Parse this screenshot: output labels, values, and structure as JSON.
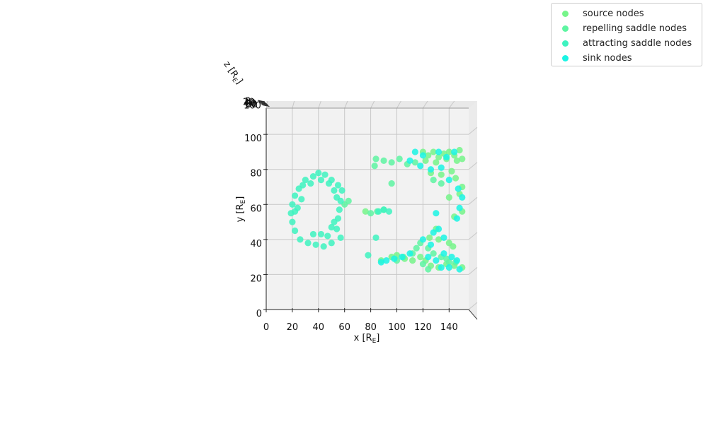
{
  "chart_data": {
    "type": "scatter",
    "projection": "3d, viewed from top (x-y plane)",
    "xlabel": "x [R_E]",
    "ylabel": "y [R_E]",
    "zlabel": "z [R_E]",
    "xlim": [
      0,
      155
    ],
    "ylim": [
      0,
      115
    ],
    "x_ticks": [
      "0",
      "20",
      "40",
      "60",
      "80",
      "100",
      "120",
      "140"
    ],
    "y_ticks": [
      "0",
      "20",
      "40",
      "60",
      "80",
      "100"
    ],
    "z_ticks": [
      "0",
      "20",
      "40",
      "60",
      "80",
      "100"
    ],
    "grid": true,
    "legend_placement": "top-right",
    "series": [
      {
        "name": "source nodes",
        "color": "#76f58a",
        "points": [
          [
            120,
            90
          ],
          [
            124,
            88
          ],
          [
            128,
            90
          ],
          [
            132,
            87
          ],
          [
            136,
            89
          ],
          [
            140,
            90
          ],
          [
            144,
            88
          ],
          [
            148,
            91
          ],
          [
            150,
            86
          ],
          [
            122,
            85
          ],
          [
            130,
            84
          ],
          [
            138,
            86
          ],
          [
            146,
            85
          ],
          [
            126,
            78
          ],
          [
            134,
            77
          ],
          [
            142,
            79
          ],
          [
            145,
            75
          ],
          [
            150,
            70
          ],
          [
            148,
            66
          ],
          [
            140,
            64
          ],
          [
            150,
            56
          ],
          [
            144,
            53
          ],
          [
            130,
            46
          ],
          [
            125,
            41
          ],
          [
            132,
            40
          ],
          [
            140,
            38
          ],
          [
            143,
            36
          ],
          [
            122,
            28
          ],
          [
            126,
            25
          ],
          [
            132,
            24
          ],
          [
            138,
            26
          ],
          [
            144,
            25
          ],
          [
            150,
            24
          ],
          [
            118,
            30
          ],
          [
            112,
            28
          ],
          [
            106,
            29
          ],
          [
            100,
            31
          ],
          [
            96,
            30
          ],
          [
            88,
            28
          ],
          [
            76,
            56
          ]
        ]
      },
      {
        "name": "repelling saddle nodes",
        "color": "#5ef5a2",
        "points": [
          [
            84,
            86
          ],
          [
            90,
            85
          ],
          [
            96,
            84
          ],
          [
            102,
            86
          ],
          [
            108,
            83
          ],
          [
            114,
            84
          ],
          [
            83,
            82
          ],
          [
            128,
            74
          ],
          [
            134,
            72
          ],
          [
            96,
            72
          ],
          [
            85,
            56
          ],
          [
            90,
            57
          ],
          [
            80,
            55
          ],
          [
            60,
            60
          ],
          [
            63,
            62
          ],
          [
            115,
            35
          ],
          [
            112,
            32
          ],
          [
            105,
            30
          ],
          [
            100,
            28
          ],
          [
            118,
            38
          ],
          [
            124,
            35
          ],
          [
            128,
            32
          ],
          [
            134,
            30
          ],
          [
            138,
            29
          ],
          [
            140,
            27
          ],
          [
            145,
            27
          ],
          [
            120,
            26
          ],
          [
            124,
            23
          ]
        ]
      },
      {
        "name": "attracting saddle nodes",
        "color": "#3ef3c0",
        "points": [
          [
            40,
            78
          ],
          [
            36,
            76
          ],
          [
            30,
            74
          ],
          [
            45,
            77
          ],
          [
            50,
            74
          ],
          [
            55,
            71
          ],
          [
            58,
            68
          ],
          [
            57,
            62
          ],
          [
            56,
            57
          ],
          [
            55,
            52
          ],
          [
            54,
            46
          ],
          [
            57,
            41
          ],
          [
            50,
            38
          ],
          [
            44,
            36
          ],
          [
            38,
            37
          ],
          [
            32,
            38
          ],
          [
            26,
            40
          ],
          [
            22,
            45
          ],
          [
            20,
            50
          ],
          [
            19,
            55
          ],
          [
            20,
            60
          ],
          [
            22,
            65
          ],
          [
            25,
            69
          ],
          [
            28,
            71
          ],
          [
            34,
            72
          ],
          [
            42,
            74
          ],
          [
            48,
            72
          ],
          [
            52,
            68
          ],
          [
            54,
            64
          ],
          [
            36,
            43
          ],
          [
            42,
            43
          ],
          [
            47,
            42
          ],
          [
            50,
            47
          ],
          [
            52,
            50
          ],
          [
            22,
            56
          ],
          [
            24,
            58
          ],
          [
            27,
            63
          ],
          [
            84,
            41
          ],
          [
            78,
            31
          ],
          [
            90,
            57
          ],
          [
            86,
            56
          ],
          [
            94,
            56
          ]
        ]
      },
      {
        "name": "sink nodes",
        "color": "#1af4e4",
        "points": [
          [
            114,
            90
          ],
          [
            120,
            88
          ],
          [
            132,
            90
          ],
          [
            138,
            87
          ],
          [
            144,
            90
          ],
          [
            110,
            85
          ],
          [
            118,
            82
          ],
          [
            126,
            80
          ],
          [
            134,
            81
          ],
          [
            140,
            74
          ],
          [
            147,
            69
          ],
          [
            150,
            64
          ],
          [
            148,
            58
          ],
          [
            146,
            52
          ],
          [
            130,
            55
          ],
          [
            120,
            40
          ],
          [
            128,
            44
          ],
          [
            136,
            41
          ],
          [
            124,
            30
          ],
          [
            130,
            28
          ],
          [
            136,
            32
          ],
          [
            142,
            30
          ],
          [
            146,
            28
          ],
          [
            134,
            24
          ],
          [
            140,
            24
          ],
          [
            148,
            23
          ],
          [
            110,
            32
          ],
          [
            104,
            30
          ],
          [
            98,
            29
          ],
          [
            92,
            28
          ],
          [
            88,
            27
          ],
          [
            126,
            37
          ],
          [
            132,
            46
          ]
        ]
      }
    ]
  }
}
